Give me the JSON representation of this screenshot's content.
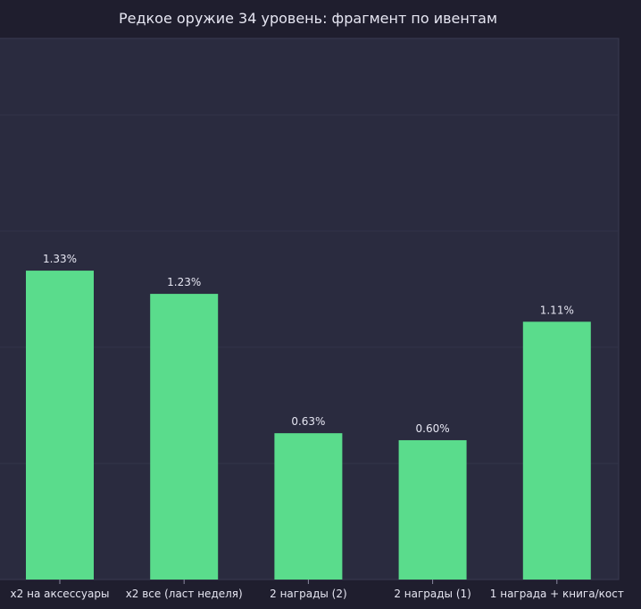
{
  "chart_data": {
    "type": "bar",
    "title": "Редкое оружие 34 уровень: фрагмент по ивентам",
    "categories": [
      "x2 на аксессуары",
      "x2 все (ласт неделя)",
      "2 награды (2)",
      "2 награды (1)",
      "1 награда + книга/кост"
    ],
    "values": [
      1.33,
      1.23,
      0.63,
      0.6,
      1.11
    ],
    "value_labels": [
      "1.33%",
      "1.23%",
      "0.63%",
      "0.60%",
      "1.11%"
    ],
    "xlabel": "",
    "ylabel": "",
    "ylim": [
      0,
      2.33
    ],
    "grid": true,
    "colors": {
      "bar": "#5adc8c",
      "plot_bg": "#2a2b3f",
      "page_bg": "#1f1e2e",
      "text": "#e6e6f2",
      "grid": "#33344a"
    }
  }
}
